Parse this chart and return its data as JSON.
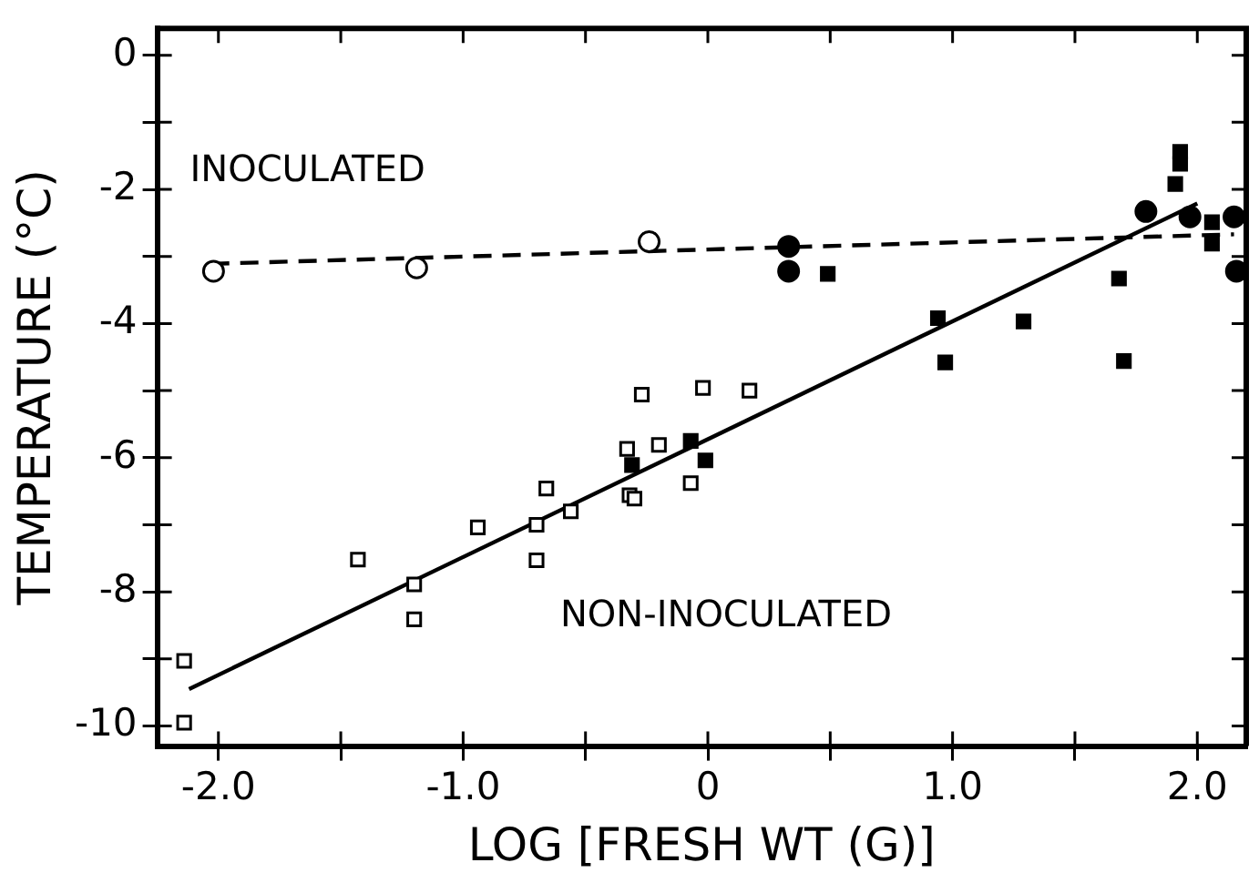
{
  "chart_data": {
    "type": "scatter",
    "xlabel": "LOG [FRESH WT (G)]",
    "ylabel": "TEMPERATURE (°C)",
    "xlim": [
      -2.25,
      2.2
    ],
    "ylim": [
      -10.3,
      0.4
    ],
    "xticks": [
      {
        "value": -2,
        "label": "-2.0"
      },
      {
        "value": -1.5,
        "label": null
      },
      {
        "value": -1,
        "label": "-1.0"
      },
      {
        "value": -0.5,
        "label": null
      },
      0,
      {
        "value": 0.5,
        "label": null
      },
      {
        "value": 1,
        "label": "1.0"
      },
      {
        "value": 1.5,
        "label": null
      },
      {
        "value": 2,
        "label": "2.0"
      }
    ],
    "yticks": [
      0,
      {
        "value": -1,
        "label": null
      },
      -2,
      {
        "value": -3,
        "label": null
      },
      -4,
      {
        "value": -5,
        "label": null
      },
      -6,
      {
        "value": -7,
        "label": null
      },
      -8,
      {
        "value": -9,
        "label": null
      },
      -10
    ],
    "grid": false,
    "legend": false,
    "annotations": [
      "INOCULATED",
      "NON-INOCULATED"
    ],
    "series": [
      {
        "color": "#ffffff",
        "marker": "circle",
        "x": [
          -2.02,
          -1.19,
          -0.24
        ],
        "values": [
          -3.22,
          -3.17,
          -2.78
        ]
      },
      {
        "color": "#000000",
        "marker": "circle",
        "x": [
          0.33,
          0.33,
          1.79,
          1.97,
          2.15,
          2.16
        ],
        "values": [
          -2.85,
          -3.22,
          -2.33,
          -2.41,
          -2.41,
          -3.22
        ]
      },
      {
        "color": "#ffffff",
        "marker": "square",
        "x": [
          -2.14,
          -2.14,
          -1.43,
          -1.2,
          -1.2,
          -0.94,
          -0.7,
          -0.7,
          -0.66,
          -0.56,
          -0.33,
          -0.32,
          -0.3,
          -0.27,
          -0.2,
          -0.07,
          -0.02,
          0.17
        ],
        "values": [
          -9.03,
          -9.95,
          -7.52,
          -7.89,
          -8.41,
          -7.04,
          -7.0,
          -7.53,
          -6.46,
          -6.8,
          -5.87,
          -6.56,
          -6.61,
          -5.06,
          -5.81,
          -6.38,
          -4.96,
          -5.0
        ]
      },
      {
        "color": "#000000",
        "marker": "square",
        "x": [
          -0.31,
          -0.07,
          -0.01,
          0.49,
          0.94,
          0.97,
          1.29,
          1.68,
          1.7,
          1.93,
          1.93,
          1.91,
          2.06,
          2.06
        ],
        "values": [
          -6.11,
          -5.75,
          -6.04,
          -3.26,
          -3.92,
          -4.58,
          -3.97,
          -3.33,
          -4.56,
          -1.44,
          -1.62,
          -1.92,
          -2.49,
          -2.81
        ]
      },
      {
        "type": "line",
        "color": "#000000",
        "line_style": "dashed",
        "x": [
          -2.03,
          2.15
        ],
        "values": [
          -3.11,
          -2.67
        ]
      },
      {
        "type": "line",
        "color": "#000000",
        "line_style": "solid",
        "x": [
          -2.12,
          2.0
        ],
        "values": [
          -9.45,
          -2.21
        ]
      }
    ]
  }
}
